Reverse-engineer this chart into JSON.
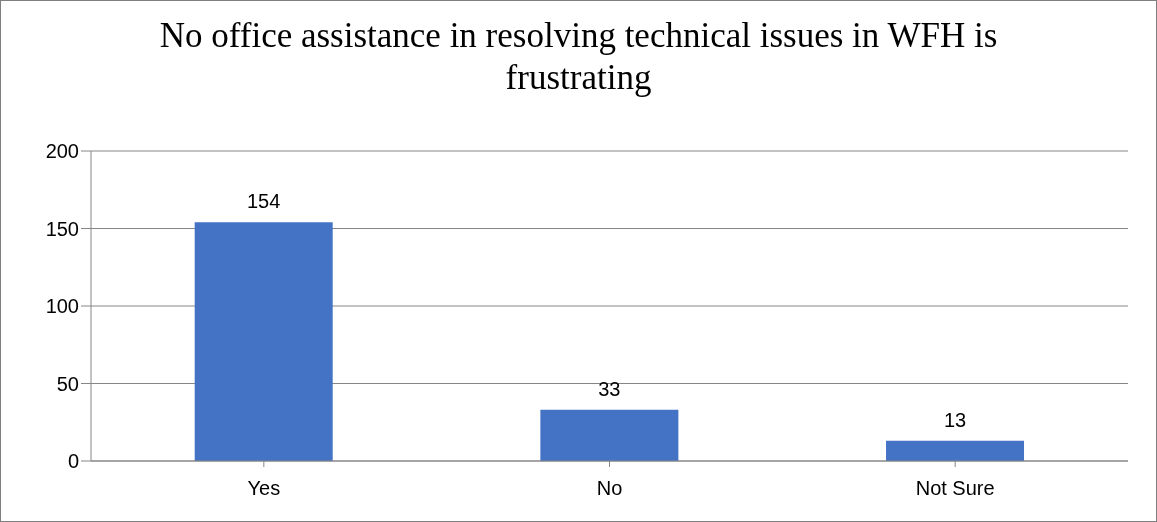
{
  "chart_data": {
    "type": "bar",
    "title": "No office assistance in resolving technical issues in WFH is frustrating",
    "categories": [
      "Yes",
      "No",
      "Not Sure"
    ],
    "values": [
      154,
      33,
      13
    ],
    "color": "#4472c4",
    "ylim": [
      0,
      200
    ],
    "yticks": [
      0,
      50,
      100,
      150,
      200
    ],
    "grid": "y",
    "data_labels": true
  }
}
